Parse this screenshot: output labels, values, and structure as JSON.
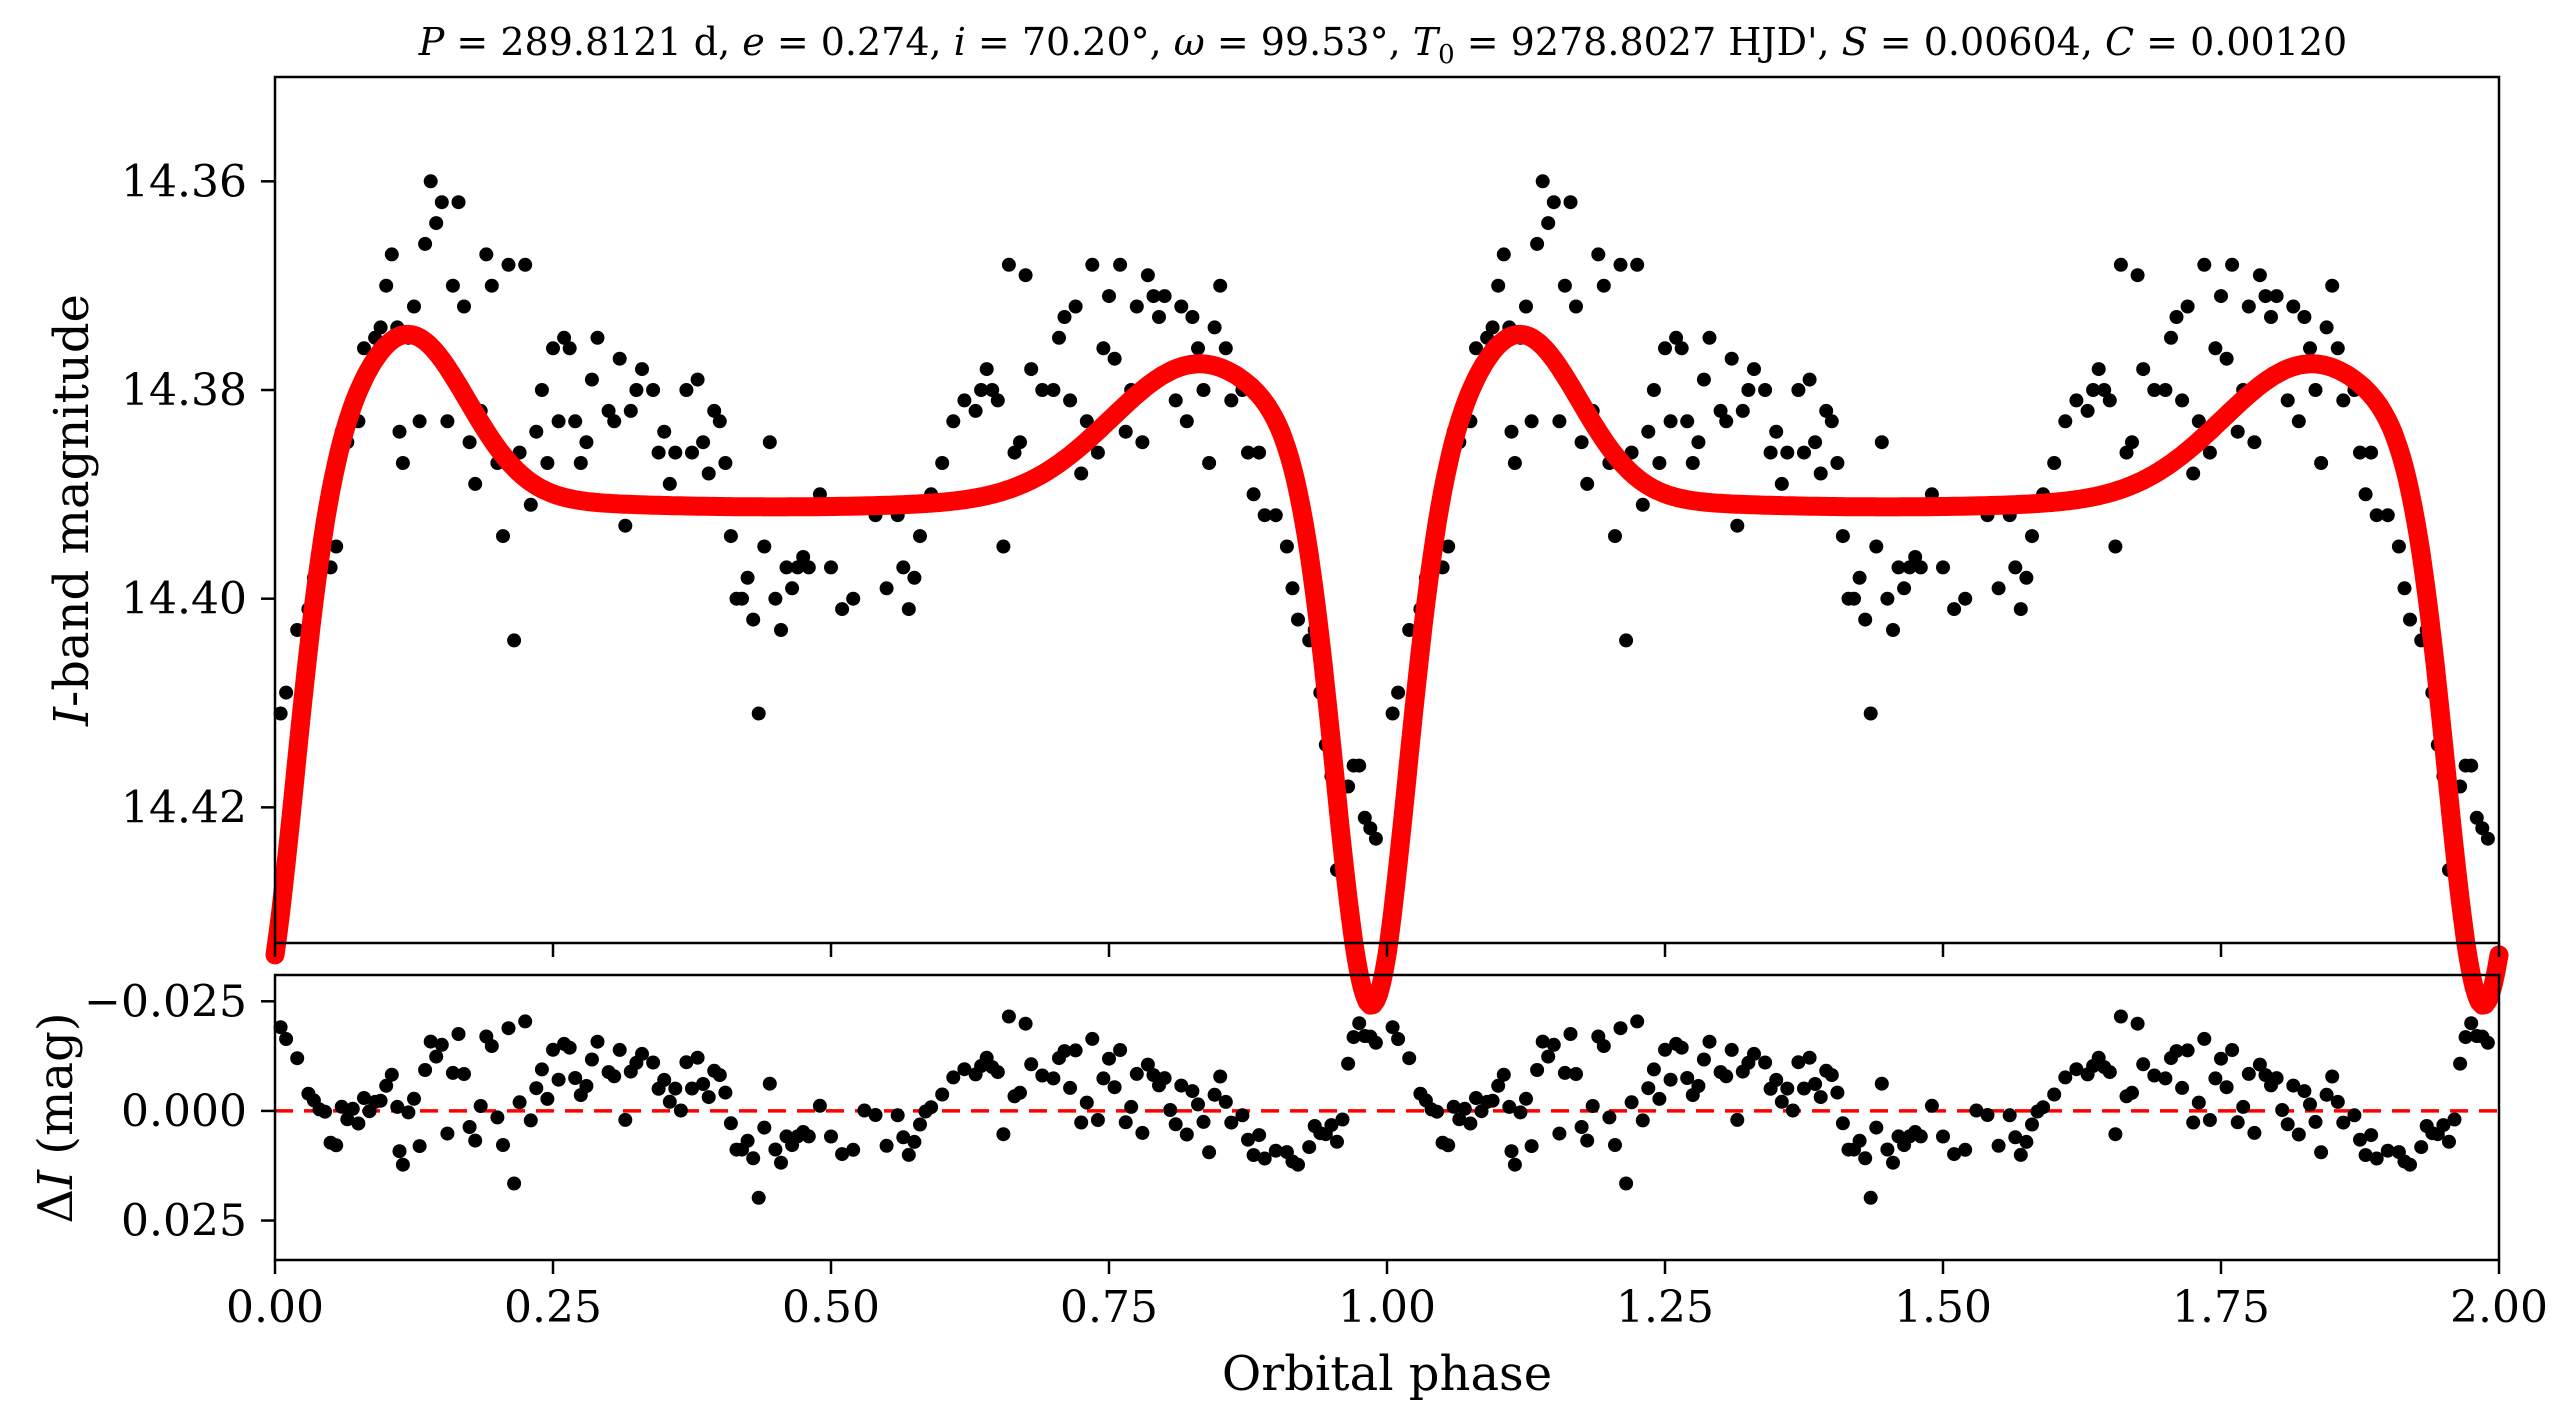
{
  "chart_data": [
    {
      "type": "scatter",
      "panel": "top",
      "title": "P = 289.8121 d, e = 0.274, i = 70.20°, ω = 99.53°, T0 = 9278.8027 HJD', S = 0.00604, C = 0.00120",
      "title_parts": {
        "p_sym": "P",
        "p_val": " = 289.8121 d, ",
        "e_sym": "e",
        "e_val": " = 0.274, ",
        "i_sym": "i",
        "i_val": " = 70.20°, ",
        "w_sym": "ω",
        "w_val": " = 99.53°, ",
        "t_sym": "T",
        "t_sub": "0",
        "t_val": " = 9278.8027 HJD', ",
        "s_sym": "S",
        "s_val": " = 0.00604, ",
        "c_sym": "C",
        "c_val": " = 0.00120"
      },
      "ylabel_italic": "I",
      "ylabel_rest": "-band magnitude",
      "xlim": [
        0,
        2
      ],
      "ylim": [
        14.433,
        14.35
      ],
      "inverted_y": true,
      "yticks": [
        14.36,
        14.38,
        14.4,
        14.42
      ],
      "ytick_labels": [
        "14.36",
        "14.38",
        "14.40",
        "14.42"
      ],
      "xticks": [
        0,
        0.25,
        0.5,
        0.75,
        1.0,
        1.25,
        1.5,
        1.75,
        2.0
      ],
      "series": [
        {
          "kind": "points",
          "color": "#000000",
          "points": [
            [
              0.005,
              14.411
            ],
            [
              0.01,
              14.409
            ],
            [
              0.02,
              14.403
            ],
            [
              0.03,
              14.401
            ],
            [
              0.035,
              14.398
            ],
            [
              0.04,
              14.396
            ],
            [
              0.045,
              14.393
            ],
            [
              0.05,
              14.397
            ],
            [
              0.055,
              14.395
            ],
            [
              0.06,
              14.384
            ],
            [
              0.065,
              14.385
            ],
            [
              0.07,
              14.381
            ],
            [
              0.075,
              14.383
            ],
            [
              0.08,
              14.376
            ],
            [
              0.085,
              14.378
            ],
            [
              0.09,
              14.375
            ],
            [
              0.095,
              14.374
            ],
            [
              0.1,
              14.37
            ],
            [
              0.105,
              14.367
            ],
            [
              0.11,
              14.374
            ],
            [
              0.112,
              14.384
            ],
            [
              0.115,
              14.387
            ],
            [
              0.12,
              14.375
            ],
            [
              0.125,
              14.372
            ],
            [
              0.13,
              14.383
            ],
            [
              0.135,
              14.366
            ],
            [
              0.14,
              14.36
            ],
            [
              0.145,
              14.364
            ],
            [
              0.15,
              14.362
            ],
            [
              0.155,
              14.383
            ],
            [
              0.16,
              14.37
            ],
            [
              0.165,
              14.362
            ],
            [
              0.17,
              14.372
            ],
            [
              0.175,
              14.385
            ],
            [
              0.18,
              14.389
            ],
            [
              0.185,
              14.382
            ],
            [
              0.19,
              14.367
            ],
            [
              0.195,
              14.37
            ],
            [
              0.2,
              14.387
            ],
            [
              0.205,
              14.394
            ],
            [
              0.21,
              14.368
            ],
            [
              0.215,
              14.404
            ],
            [
              0.22,
              14.386
            ],
            [
              0.225,
              14.368
            ],
            [
              0.23,
              14.391
            ],
            [
              0.235,
              14.384
            ],
            [
              0.24,
              14.38
            ],
            [
              0.245,
              14.387
            ],
            [
              0.25,
              14.376
            ],
            [
              0.255,
              14.383
            ],
            [
              0.26,
              14.375
            ],
            [
              0.265,
              14.376
            ],
            [
              0.27,
              14.383
            ],
            [
              0.275,
              14.387
            ],
            [
              0.28,
              14.385
            ],
            [
              0.285,
              14.379
            ],
            [
              0.29,
              14.375
            ],
            [
              0.3,
              14.382
            ],
            [
              0.305,
              14.383
            ],
            [
              0.31,
              14.377
            ],
            [
              0.315,
              14.393
            ],
            [
              0.32,
              14.382
            ],
            [
              0.325,
              14.38
            ],
            [
              0.33,
              14.378
            ],
            [
              0.34,
              14.38
            ],
            [
              0.345,
              14.386
            ],
            [
              0.35,
              14.384
            ],
            [
              0.355,
              14.389
            ],
            [
              0.36,
              14.386
            ],
            [
              0.365,
              14.391
            ],
            [
              0.37,
              14.38
            ],
            [
              0.375,
              14.386
            ],
            [
              0.38,
              14.379
            ],
            [
              0.385,
              14.385
            ],
            [
              0.39,
              14.388
            ],
            [
              0.395,
              14.382
            ],
            [
              0.4,
              14.383
            ],
            [
              0.405,
              14.387
            ],
            [
              0.41,
              14.394
            ],
            [
              0.415,
              14.4
            ],
            [
              0.42,
              14.4
            ],
            [
              0.425,
              14.398
            ],
            [
              0.43,
              14.402
            ],
            [
              0.435,
              14.411
            ],
            [
              0.44,
              14.395
            ],
            [
              0.445,
              14.385
            ],
            [
              0.45,
              14.4
            ],
            [
              0.455,
              14.403
            ],
            [
              0.46,
              14.397
            ],
            [
              0.465,
              14.399
            ],
            [
              0.47,
              14.397
            ],
            [
              0.475,
              14.396
            ],
            [
              0.48,
              14.397
            ],
            [
              0.49,
              14.39
            ],
            [
              0.5,
              14.397
            ],
            [
              0.51,
              14.401
            ],
            [
              0.52,
              14.4
            ],
            [
              0.53,
              14.391
            ],
            [
              0.54,
              14.392
            ],
            [
              0.55,
              14.399
            ],
            [
              0.56,
              14.392
            ],
            [
              0.565,
              14.397
            ],
            [
              0.57,
              14.401
            ],
            [
              0.575,
              14.398
            ],
            [
              0.58,
              14.394
            ],
            [
              0.585,
              14.391
            ],
            [
              0.59,
              14.39
            ],
            [
              0.6,
              14.387
            ],
            [
              0.61,
              14.383
            ],
            [
              0.62,
              14.381
            ],
            [
              0.63,
              14.382
            ],
            [
              0.635,
              14.38
            ],
            [
              0.64,
              14.378
            ],
            [
              0.645,
              14.38
            ],
            [
              0.65,
              14.381
            ],
            [
              0.655,
              14.395
            ],
            [
              0.66,
              14.368
            ],
            [
              0.665,
              14.386
            ],
            [
              0.67,
              14.385
            ],
            [
              0.675,
              14.369
            ],
            [
              0.68,
              14.378
            ],
            [
              0.69,
              14.38
            ],
            [
              0.7,
              14.38
            ],
            [
              0.705,
              14.375
            ],
            [
              0.71,
              14.373
            ],
            [
              0.715,
              14.381
            ],
            [
              0.72,
              14.372
            ],
            [
              0.725,
              14.388
            ],
            [
              0.73,
              14.383
            ],
            [
              0.735,
              14.368
            ],
            [
              0.74,
              14.386
            ],
            [
              0.745,
              14.376
            ],
            [
              0.75,
              14.371
            ],
            [
              0.755,
              14.377
            ],
            [
              0.76,
              14.368
            ],
            [
              0.765,
              14.384
            ],
            [
              0.77,
              14.38
            ],
            [
              0.775,
              14.372
            ],
            [
              0.78,
              14.385
            ],
            [
              0.785,
              14.369
            ],
            [
              0.79,
              14.371
            ],
            [
              0.795,
              14.373
            ],
            [
              0.8,
              14.371
            ],
            [
              0.805,
              14.378
            ],
            [
              0.81,
              14.381
            ],
            [
              0.815,
              14.372
            ],
            [
              0.82,
              14.383
            ],
            [
              0.825,
              14.373
            ],
            [
              0.83,
              14.376
            ],
            [
              0.835,
              14.38
            ],
            [
              0.84,
              14.387
            ],
            [
              0.845,
              14.374
            ],
            [
              0.85,
              14.37
            ],
            [
              0.855,
              14.376
            ],
            [
              0.86,
              14.381
            ],
            [
              0.87,
              14.38
            ],
            [
              0.875,
              14.386
            ],
            [
              0.88,
              14.39
            ],
            [
              0.885,
              14.386
            ],
            [
              0.89,
              14.392
            ],
            [
              0.9,
              14.392
            ],
            [
              0.91,
              14.395
            ],
            [
              0.915,
              14.399
            ],
            [
              0.92,
              14.402
            ],
            [
              0.93,
              14.404
            ],
            [
              0.935,
              14.403
            ],
            [
              0.94,
              14.409
            ],
            [
              0.945,
              14.414
            ],
            [
              0.95,
              14.417
            ],
            [
              0.955,
              14.426
            ],
            [
              0.96,
              14.426
            ],
            [
              0.965,
              14.418
            ],
            [
              0.97,
              14.416
            ],
            [
              0.975,
              14.416
            ],
            [
              0.98,
              14.421
            ],
            [
              0.985,
              14.422
            ],
            [
              0.99,
              14.423
            ]
          ]
        },
        {
          "kind": "model-curve",
          "color": "#ff0000"
        }
      ]
    },
    {
      "type": "scatter",
      "panel": "bottom",
      "xlabel": "Orbital phase",
      "ylabel_sym": "Δ",
      "ylabel_italic": "I",
      "ylabel_rest": " (mag)",
      "xlim": [
        0,
        2
      ],
      "ylim": [
        0.034,
        -0.031
      ],
      "inverted_y": true,
      "yticks": [
        -0.025,
        0.0,
        0.025
      ],
      "ytick_labels": [
        "−0.025",
        "0.000",
        "0.025"
      ],
      "xticks": [
        0,
        0.25,
        0.5,
        0.75,
        1.0,
        1.25,
        1.5,
        1.75,
        2.0
      ],
      "xtick_labels": [
        "0.00",
        "0.25",
        "0.50",
        "0.75",
        "1.00",
        "1.25",
        "1.50",
        "1.75",
        "2.00"
      ],
      "series": [
        {
          "kind": "residuals",
          "color": "#000000"
        },
        {
          "kind": "zero-line",
          "color": "#ff0000",
          "y": 0.0
        }
      ]
    }
  ]
}
